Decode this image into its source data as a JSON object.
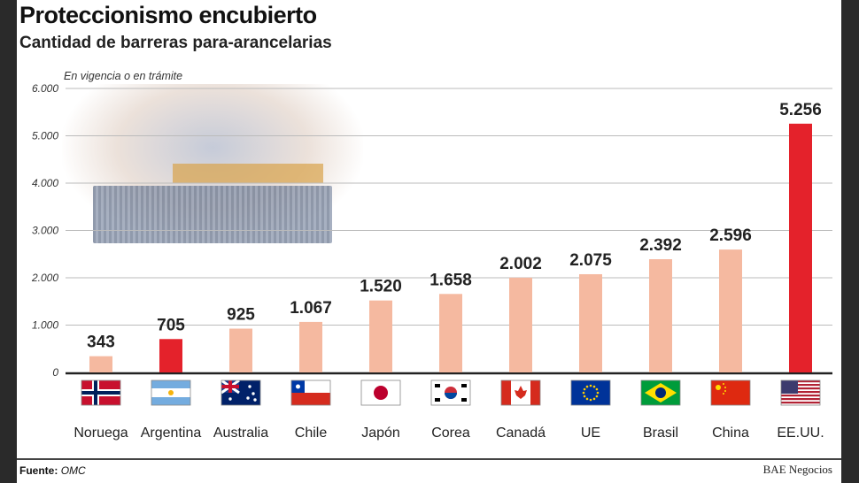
{
  "header": {
    "title": "Proteccionismo encubierto",
    "subtitle": "Cantidad de barreras para-arancelarias"
  },
  "footer": {
    "source_label": "Fuente:",
    "source": "OMC",
    "credit": "BAE Negocios"
  },
  "chart_data": {
    "type": "bar",
    "title": "Proteccionismo encubierto",
    "subtitle": "Cantidad de barreras para-arancelarias",
    "note": "En vigencia o en trámite",
    "categories": [
      "Noruega",
      "Argentina",
      "Australia",
      "Chile",
      "Japón",
      "Corea",
      "Canadá",
      "UE",
      "Brasil",
      "China",
      "EE.UU."
    ],
    "values": [
      343,
      705,
      925,
      1067,
      1520,
      1658,
      2002,
      2075,
      2392,
      2596,
      5256
    ],
    "value_labels": [
      "343",
      "705",
      "925",
      "1.067",
      "1.520",
      "1.658",
      "2.002",
      "2.075",
      "2.392",
      "2.596",
      "5.256"
    ],
    "flags": [
      "norway-flag",
      "argentina-flag",
      "australia-flag",
      "chile-flag",
      "japan-flag",
      "south-korea-flag",
      "canada-flag",
      "eu-flag",
      "brazil-flag",
      "china-flag",
      "usa-flag"
    ],
    "highlight": [
      "Argentina",
      "EE.UU."
    ],
    "colors": {
      "default": "#f5b9a0",
      "highlight": "#e4222b"
    },
    "ylim": [
      0,
      6000
    ],
    "yticks": [
      0,
      1000,
      2000,
      3000,
      4000,
      5000,
      6000
    ],
    "ytick_labels": [
      "0",
      "1.000",
      "2.000",
      "3.000",
      "4.000",
      "5.000",
      "6.000"
    ],
    "grid": true
  }
}
